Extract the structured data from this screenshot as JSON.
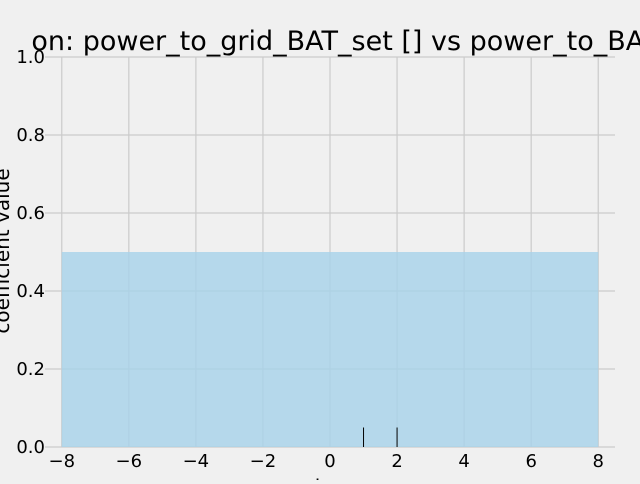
{
  "chart_data": {
    "type": "area",
    "title": "on: power_to_grid_BAT_set [] vs power_to_BAT",
    "xlabel": "lag",
    "ylabel": "coefficient value",
    "xlim": [
      -8,
      8
    ],
    "ylim": [
      0,
      1
    ],
    "xticks": [
      -8,
      -6,
      -4,
      -2,
      0,
      2,
      4,
      6,
      8
    ],
    "yticks": [
      0.0,
      0.2,
      0.4,
      0.6,
      0.8,
      1.0
    ],
    "xtick_labels": [
      "−8",
      "−6",
      "−4",
      "−2",
      "0",
      "2",
      "4",
      "6",
      "8"
    ],
    "ytick_labels": [
      "0.0",
      "0.2",
      "0.4",
      "0.6",
      "0.8",
      "1.0"
    ],
    "grid": true,
    "series": [
      {
        "kind": "band",
        "x": [
          -8,
          8
        ],
        "y_low": [
          0,
          0
        ],
        "y_high": [
          0.5,
          0.5
        ],
        "color": "#a6d2ea"
      },
      {
        "kind": "stem",
        "x": [
          1,
          2
        ],
        "y": [
          0.05,
          0.05
        ],
        "color": "#000000"
      }
    ],
    "colors": {
      "background": "#f0f0f0",
      "grid": "#cbcbcb",
      "band": "#a6d2ea"
    }
  }
}
